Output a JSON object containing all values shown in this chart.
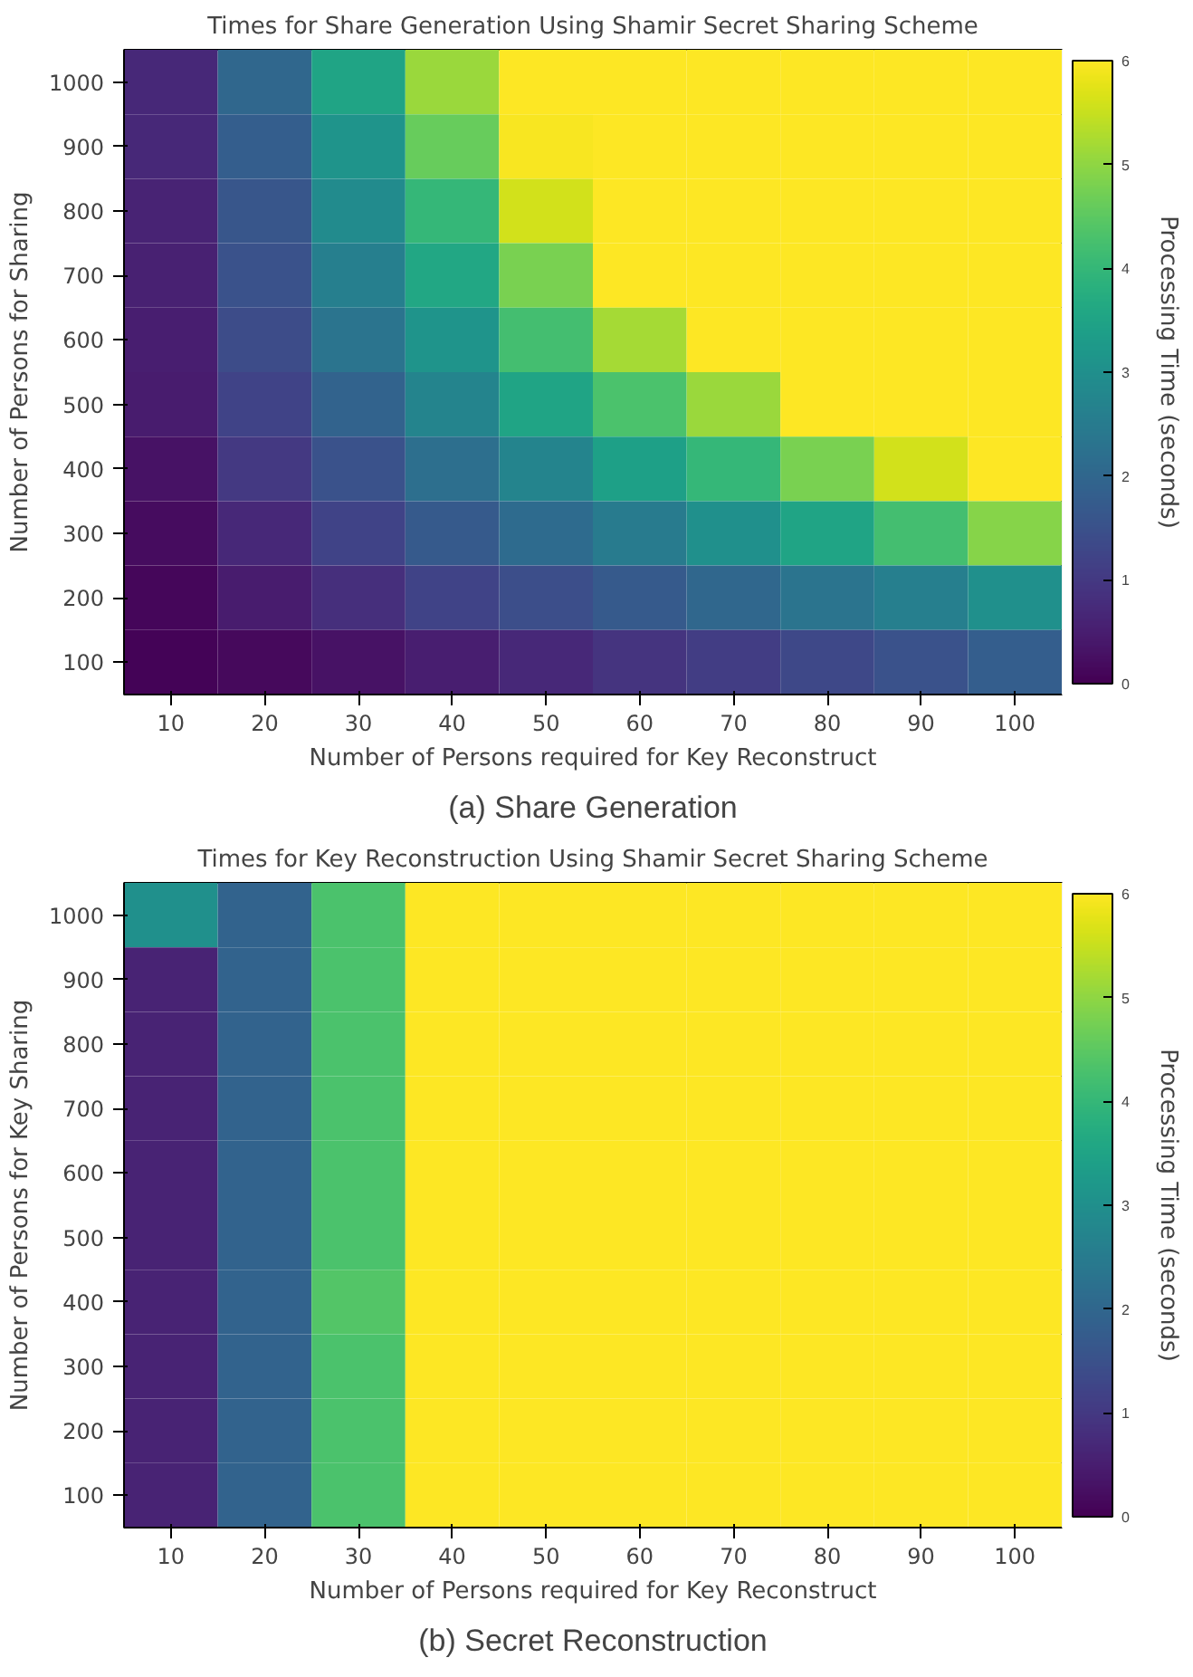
{
  "chart_data": [
    {
      "type": "heatmap",
      "title": "Times for Share Generation Using Shamir Secret Sharing Scheme",
      "xlabel": "Number of Persons required for Key Reconstruct",
      "ylabel": "Number of Persons for Sharing",
      "clabel": "Processing Time (seconds)",
      "annotations": [
        "(a) Share Generation"
      ],
      "categories": [
        "10",
        "20",
        "30",
        "40",
        "50",
        "60",
        "70",
        "80",
        "90",
        "100"
      ],
      "y_categories": [
        "1000",
        "900",
        "800",
        "700",
        "600",
        "500",
        "400",
        "300",
        "200",
        "100"
      ],
      "cells": [
        [
          0.7,
          2.0,
          3.5,
          5.1,
          6,
          6,
          6,
          6,
          6,
          6
        ],
        [
          0.7,
          1.8,
          3.1,
          4.6,
          5.95,
          6,
          6,
          6,
          6,
          6
        ],
        [
          0.6,
          1.6,
          2.9,
          4.0,
          5.6,
          6,
          6,
          6,
          6,
          6
        ],
        [
          0.55,
          1.5,
          2.6,
          3.6,
          4.8,
          6,
          6,
          6,
          6,
          6
        ],
        [
          0.5,
          1.4,
          2.3,
          3.1,
          4.2,
          5.2,
          6,
          6,
          6,
          6
        ],
        [
          0.45,
          1.2,
          1.9,
          2.7,
          3.5,
          4.3,
          5.1,
          6,
          6,
          6
        ],
        [
          0.3,
          1.0,
          1.5,
          2.2,
          2.7,
          3.4,
          4.0,
          4.8,
          5.6,
          6
        ],
        [
          0.2,
          0.7,
          1.2,
          1.7,
          2.1,
          2.5,
          3.0,
          3.5,
          4.2,
          4.9
        ],
        [
          0.1,
          0.45,
          0.8,
          1.2,
          1.45,
          1.7,
          2.0,
          2.3,
          2.6,
          3.0
        ],
        [
          0.05,
          0.15,
          0.3,
          0.5,
          0.7,
          0.9,
          1.1,
          1.3,
          1.5,
          1.8
        ]
      ],
      "clim": [
        0,
        6
      ],
      "cticks": [
        0,
        1,
        2,
        3,
        4,
        5,
        6
      ]
    },
    {
      "type": "heatmap",
      "title": "Times for Key Reconstruction Using Shamir Secret Sharing Scheme",
      "xlabel": "Number of Persons required for Key Reconstruct",
      "ylabel": "Number of Persons for Key Sharing",
      "clabel": "Processing Time (seconds)",
      "annotations": [
        "(b) Secret Reconstruction"
      ],
      "categories": [
        "10",
        "20",
        "30",
        "40",
        "50",
        "60",
        "70",
        "80",
        "90",
        "100"
      ],
      "y_categories": [
        "1000",
        "900",
        "800",
        "700",
        "600",
        "500",
        "400",
        "300",
        "200",
        "100"
      ],
      "cells": [
        [
          3.0,
          1.9,
          4.3,
          6,
          6,
          6,
          6,
          6,
          6,
          6
        ],
        [
          0.6,
          1.9,
          4.3,
          6,
          6,
          6,
          6,
          6,
          6,
          6
        ],
        [
          0.6,
          1.9,
          4.3,
          6,
          6,
          6,
          6,
          6,
          6,
          6
        ],
        [
          0.6,
          1.9,
          4.3,
          6,
          6,
          6,
          6,
          6,
          6,
          6
        ],
        [
          0.6,
          1.9,
          4.3,
          6,
          6,
          6,
          6,
          6,
          6,
          6
        ],
        [
          0.6,
          1.9,
          4.3,
          6,
          6,
          6,
          6,
          6,
          6,
          6
        ],
        [
          0.6,
          1.9,
          4.4,
          6,
          6,
          6,
          6,
          6,
          6,
          6
        ],
        [
          0.6,
          1.9,
          4.3,
          6,
          6,
          6,
          6,
          6,
          6,
          6
        ],
        [
          0.6,
          1.9,
          4.3,
          6,
          6,
          6,
          6,
          6,
          6,
          6
        ],
        [
          0.6,
          1.9,
          4.3,
          6,
          6,
          6,
          6,
          6,
          6,
          6
        ]
      ],
      "clim": [
        0,
        6
      ],
      "cticks": [
        0,
        1,
        2,
        3,
        4,
        5,
        6
      ]
    }
  ]
}
